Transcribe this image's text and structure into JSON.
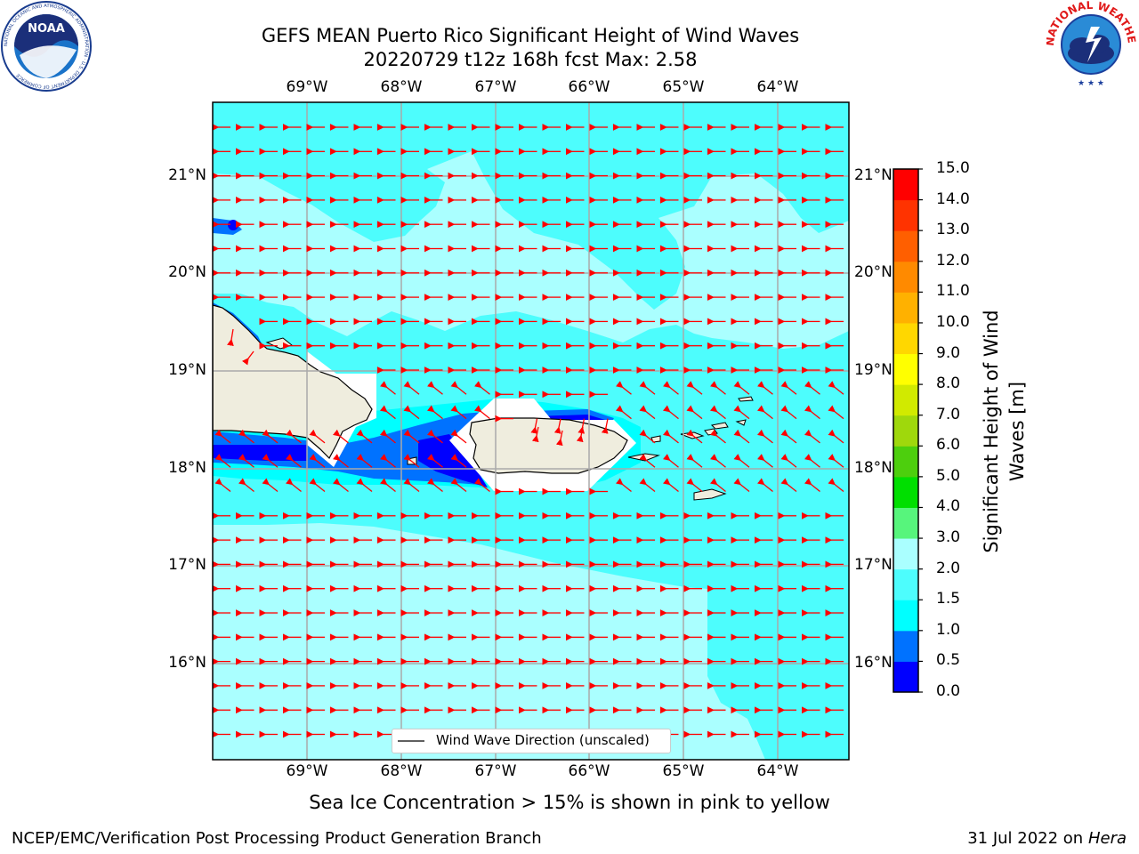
{
  "header": {
    "title_line1": "GEFS MEAN Puerto Rico Significant Height of Wind Waves",
    "title_line2": "20220729 t12z 168h fcst   Max: 2.58"
  },
  "logos": {
    "left": {
      "name": "noaa-logo",
      "text": "NOAA",
      "ring_text": "NATIONAL OCEANIC AND ATMOSPHERIC ADMINISTRATION · U.S. DEPARTMENT OF COMMERCE"
    },
    "right": {
      "name": "nws-logo",
      "ring_text": "NATIONAL WEATHER SERVICE"
    }
  },
  "map": {
    "lon_labels": [
      "69°W",
      "68°W",
      "67°W",
      "66°W",
      "65°W",
      "64°W"
    ],
    "lat_labels": [
      "21°N",
      "20°N",
      "19°N",
      "18°N",
      "17°N",
      "16°N"
    ],
    "legend_label": "Wind Wave Direction (unscaled)",
    "arrow_color": "#ff0000",
    "land_color": "#efedde"
  },
  "colorbar": {
    "label": "Significant Height of Wind Waves [m]",
    "label_line1": "Significant Height of Wind",
    "label_line2": "Waves [m]",
    "ticks": [
      "0.0",
      "0.5",
      "1.0",
      "1.5",
      "2.0",
      "3.0",
      "4.0",
      "5.0",
      "6.0",
      "7.0",
      "8.0",
      "9.0",
      "10.0",
      "11.0",
      "12.0",
      "13.0",
      "14.0",
      "15.0"
    ],
    "colors": [
      "#0000ff",
      "#0072ff",
      "#00ffff",
      "#4dfdfd",
      "#aaffff",
      "#57f57c",
      "#00df00",
      "#4dcf0d",
      "#9fd80c",
      "#d1ea00",
      "#ffff00",
      "#ffd700",
      "#ffb100",
      "#ff8a00",
      "#ff5f00",
      "#ff3300",
      "#ff0000"
    ]
  },
  "footer": {
    "ice_note": "Sea Ice Concentration > 15% is shown in pink to yellow",
    "left": "NCEP/EMC/Verification Post Processing Product Generation Branch",
    "right_prefix": "31 Jul 2022 on ",
    "right_host": "Hera"
  }
}
